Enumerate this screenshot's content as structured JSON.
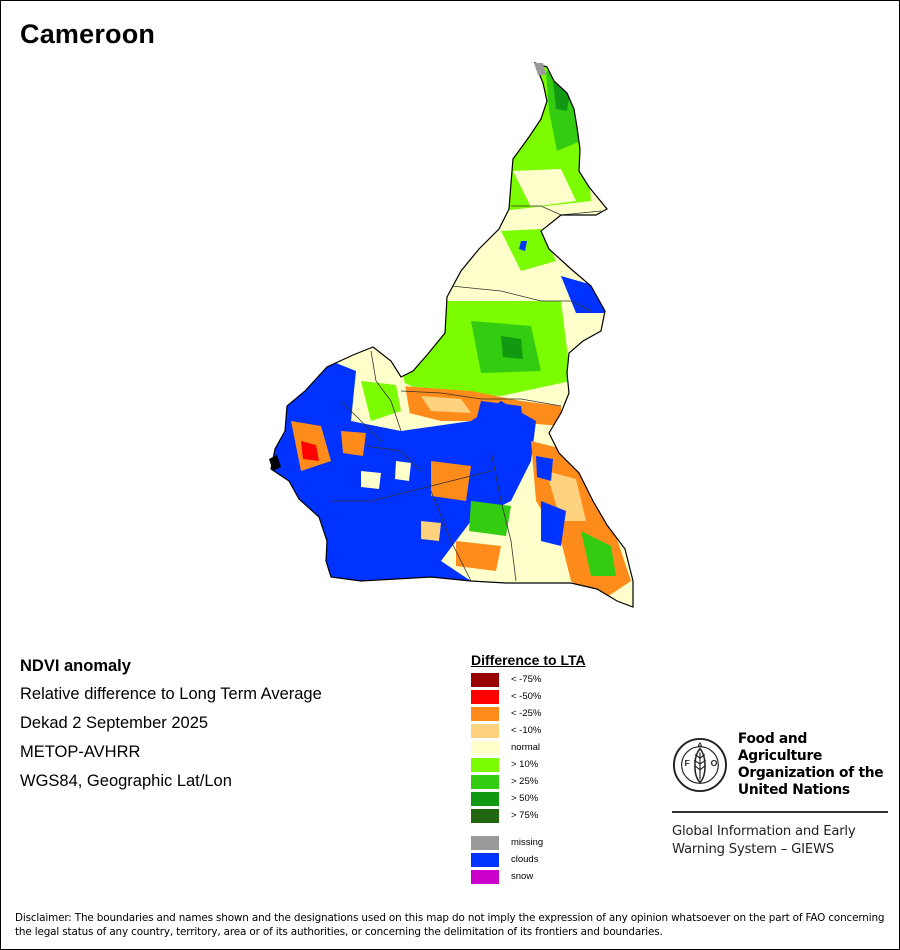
{
  "map": {
    "title": "Cameroon",
    "region": "Cameroon"
  },
  "info": {
    "heading": "NDVI anomaly",
    "lines": [
      "Relative difference to Long Term Average",
      "Dekad 2 September 2025",
      "METOP-AVHRR",
      "WGS84, Geographic Lat/Lon"
    ]
  },
  "legend": {
    "title": "Difference to LTA",
    "classes": [
      {
        "label": "< -75%",
        "color": "#990000"
      },
      {
        "label": "< -50%",
        "color": "#ff0000"
      },
      {
        "label": "< -25%",
        "color": "#ff8c1a"
      },
      {
        "label": "< -10%",
        "color": "#ffd27f"
      },
      {
        "label": "normal",
        "color": "#ffffcc"
      },
      {
        "label": "> 10%",
        "color": "#7cfc00"
      },
      {
        "label": "> 25%",
        "color": "#33cc11"
      },
      {
        "label": "> 50%",
        "color": "#119911"
      },
      {
        "label": "> 75%",
        "color": "#226611"
      }
    ],
    "extra": [
      {
        "label": "missing",
        "color": "#999999"
      },
      {
        "label": "clouds",
        "color": "#0033ff"
      },
      {
        "label": "snow",
        "color": "#cc00cc"
      }
    ]
  },
  "organization": {
    "logo_letters": "FAO",
    "motto": "FIAT PANIS",
    "name_lines": [
      "Food and Agriculture",
      "Organization of the",
      "United Nations"
    ],
    "system_lines": [
      "Global Information and Early",
      "Warning System – GIEWS"
    ]
  },
  "disclaimer": "Disclaimer: The boundaries and names shown and the designations used on this map do not imply the expression of any opinion whatsoever on the part of FAO concerning the legal status of any country, territory, area or of its authorities, or concerning the delimitation of its frontiers and boundaries."
}
